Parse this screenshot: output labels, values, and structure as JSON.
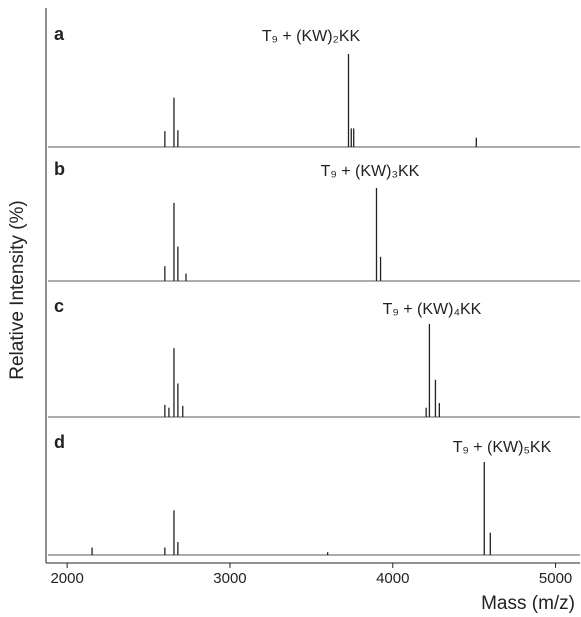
{
  "chart_data": [
    {
      "type": "stem",
      "panel_label": "a",
      "annotation": "T₉ + (KW)₂KK",
      "color": "#222222",
      "x": [
        2600,
        2656,
        2680,
        3728,
        3745,
        3760,
        4513
      ],
      "values": [
        17,
        53,
        18,
        100,
        20,
        20,
        10
      ],
      "xlim": [
        1870,
        5150
      ],
      "ylim": [
        0,
        115
      ]
    },
    {
      "type": "stem",
      "panel_label": "b",
      "annotation": "T₉ + (KW)₃KK",
      "color": "#222222",
      "x": [
        2600,
        2656,
        2680,
        2730,
        3900,
        3925
      ],
      "values": [
        16,
        84,
        37,
        8,
        100,
        26
      ],
      "xlim": [
        1870,
        5150
      ],
      "ylim": [
        0,
        115
      ]
    },
    {
      "type": "stem",
      "panel_label": "c",
      "annotation": "T₉ + (KW)₄KK",
      "color": "#222222",
      "x": [
        2600,
        2625,
        2656,
        2680,
        2710,
        4205,
        4225,
        4262,
        4286
      ],
      "values": [
        13,
        10,
        74,
        36,
        12,
        10,
        100,
        40,
        15
      ],
      "xlim": [
        1870,
        5150
      ],
      "ylim": [
        0,
        115
      ]
    },
    {
      "type": "stem",
      "panel_label": "d",
      "annotation": "T₉ + (KW)₅KK",
      "color": "#222222",
      "x": [
        2153,
        2600,
        2656,
        2680,
        3600,
        4562,
        4599
      ],
      "values": [
        8,
        8,
        48,
        14,
        3,
        100,
        24
      ],
      "xlim": [
        1870,
        5150
      ],
      "ylim": [
        0,
        115
      ]
    }
  ],
  "axes": {
    "xlabel": "Mass (m/z)",
    "ylabel": "Relative Intensity (%)",
    "xticks": [
      2000,
      3000,
      4000,
      5000
    ],
    "xlim": [
      1870,
      5150
    ]
  }
}
